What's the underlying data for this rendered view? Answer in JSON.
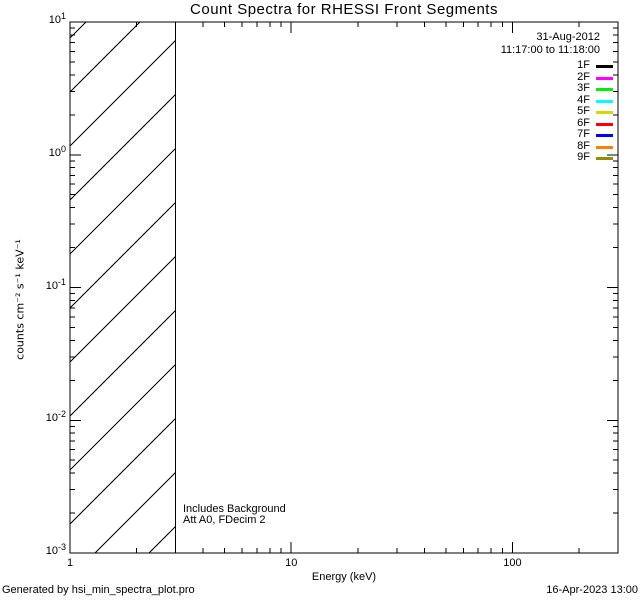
{
  "header": {
    "title": "Count Spectra for RHESSI Front Segments",
    "observation_date": "31-Aug-2012",
    "observation_interval": "11:17:00 to 11:18:00"
  },
  "legend": {
    "position": "top-right",
    "entries": [
      {
        "label": "1F",
        "color": "#000000"
      },
      {
        "label": "2F",
        "color": "#FF00FF"
      },
      {
        "label": "3F",
        "color": "#00EE00"
      },
      {
        "label": "4F",
        "color": "#00FFFF"
      },
      {
        "label": "5F",
        "color": "#D6D600"
      },
      {
        "label": "6F",
        "color": "#FF0000"
      },
      {
        "label": "7F",
        "color": "#0000FF"
      },
      {
        "label": "8F",
        "color": "#FF8000"
      },
      {
        "label": "9F",
        "color": "#8F8F00"
      }
    ]
  },
  "plot_annotations": {
    "background_note": "Includes Background",
    "attenuator_note": "Att A0, FDecim 2"
  },
  "footer": {
    "generated_by": "Generated by hsi_min_spectra_plot.pro",
    "timestamp": "16-Apr-2023 13:00"
  },
  "chart_data": {
    "type": "line",
    "title": "Count Spectra for RHESSI Front Segments",
    "xlabel": "Energy (keV)",
    "ylabel": "counts cm⁻² s⁻¹ keV⁻¹",
    "x_scale": "log",
    "y_scale": "log",
    "xlim": [
      1,
      300
    ],
    "ylim": [
      0.001,
      10
    ],
    "x_major_ticks": [
      1,
      10,
      100
    ],
    "x_tick_labels": [
      "1",
      "10",
      "100"
    ],
    "y_major_ticks": [
      10,
      1,
      0.1,
      0.01,
      0.001
    ],
    "y_tick_labels": [
      {
        "base": "10",
        "exp": "1"
      },
      {
        "base": "10",
        "exp": "0"
      },
      {
        "base": "10",
        "exp": "-1"
      },
      {
        "base": "10",
        "exp": "-2"
      },
      {
        "base": "10",
        "exp": "-3"
      }
    ],
    "grid": false,
    "legend_position": "top-right",
    "series": [],
    "hatched_band": {
      "x_from": 1,
      "x_to": 3,
      "hatch_orientation_deg": 45
    }
  }
}
